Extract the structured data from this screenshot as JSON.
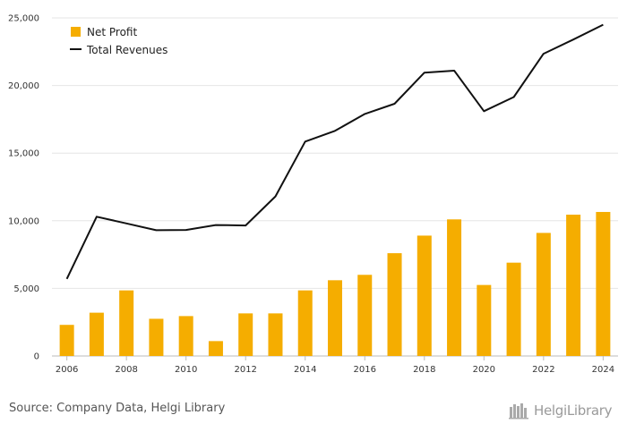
{
  "chart_data": {
    "type": "bar+line",
    "categories": [
      "2006",
      "2007",
      "2008",
      "2009",
      "2010",
      "2011",
      "2012",
      "2013",
      "2014",
      "2015",
      "2016",
      "2017",
      "2018",
      "2019",
      "2020",
      "2021",
      "2022",
      "2023",
      "2024"
    ],
    "series": [
      {
        "name": "Net Profit",
        "type": "bar",
        "color": "#f5ad00",
        "values": [
          2300,
          3200,
          4850,
          2750,
          2950,
          1100,
          3150,
          3150,
          4850,
          5600,
          6000,
          7600,
          8900,
          10100,
          5250,
          6900,
          9100,
          10450,
          10650
        ]
      },
      {
        "name": "Total Revenues",
        "type": "line",
        "color": "#111111",
        "values": [
          5700,
          10300,
          9800,
          9300,
          9320,
          9680,
          9650,
          11800,
          15850,
          16650,
          17900,
          18650,
          20950,
          21100,
          18100,
          19150,
          22350,
          23400,
          24500
        ]
      }
    ],
    "x_tick_labels": [
      "2006",
      "2008",
      "2010",
      "2012",
      "2014",
      "2016",
      "2018",
      "2020",
      "2022",
      "2024"
    ],
    "y_tick_labels": [
      "0",
      "5,000",
      "10,000",
      "15,000",
      "20,000",
      "25,000"
    ],
    "ylim": [
      0,
      25000
    ],
    "grid": true,
    "legend": "top-left"
  },
  "footer": {
    "source": "Source: Company Data, Helgi Library",
    "logo_text": "HelgiLibrary",
    "logo_icon": "books-icon"
  }
}
